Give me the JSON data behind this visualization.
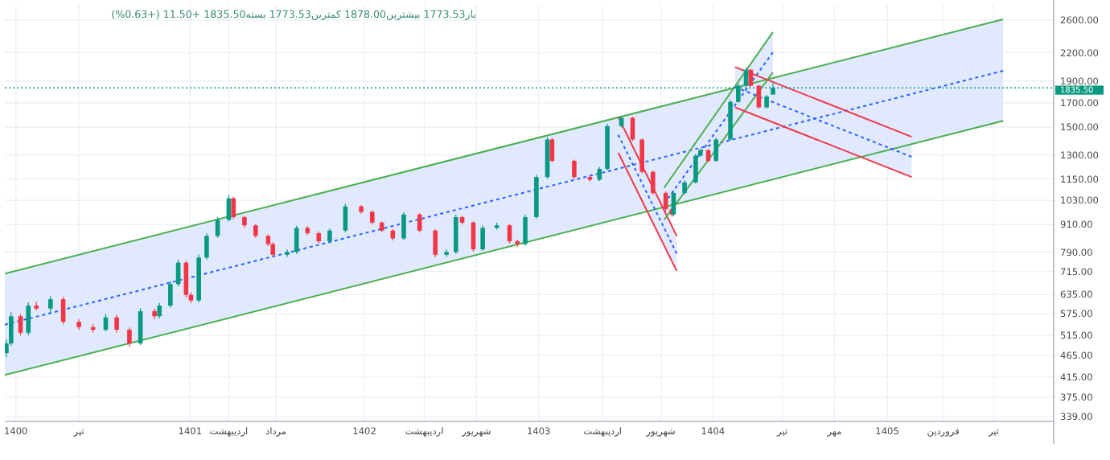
{
  "chart_data": {
    "type": "candlestick",
    "title": "باز1773.53 بیشترین1878.00 کمترین1773.53 بسته1835.50 +11.50 (+0.63%)",
    "x": [
      1399.946,
      1399.973,
      1400.027,
      1400.072,
      1400.118,
      1400.199,
      1400.272,
      1400.362,
      1400.443,
      1400.516,
      1400.579,
      1400.652,
      1400.715,
      1400.796,
      1400.824,
      1400.887,
      1400.932,
      1400.977,
      1401.005,
      1401.05,
      1401.095,
      1401.158,
      1401.222,
      1401.249,
      1401.312,
      1401.376,
      1401.448,
      1401.475,
      1401.557,
      1401.611,
      1401.674,
      1401.738,
      1401.801,
      1401.891,
      1401.982,
      1402.045,
      1402.1,
      1402.163,
      1402.226,
      1402.317,
      1402.407,
      1402.471,
      1402.525,
      1402.561,
      1402.625,
      1402.679,
      1402.76,
      1402.833,
      1402.878,
      1402.923,
      1402.987,
      1403.05,
      1403.077,
      1403.204,
      1403.294,
      1403.349,
      1403.394,
      1403.475,
      1403.539,
      1403.593,
      1403.656,
      1403.729,
      1403.765,
      1403.774,
      1403.837,
      1403.901,
      1403.928,
      1403.973,
      1404.018,
      1404.1,
      1404.145,
      1404.19,
      1404.217,
      1404.263,
      1404.308,
      1404.344
    ],
    "ohlc": [
      [
        470,
        505,
        460,
        494
      ],
      [
        494,
        580,
        488,
        568
      ],
      [
        568,
        575,
        515,
        522
      ],
      [
        522,
        610,
        515,
        600
      ],
      [
        600,
        612,
        585,
        591
      ],
      [
        591,
        630,
        580,
        620
      ],
      [
        620,
        628,
        545,
        552
      ],
      [
        552,
        560,
        530,
        537
      ],
      [
        537,
        545,
        522,
        530
      ],
      [
        530,
        575,
        525,
        565
      ],
      [
        565,
        572,
        522,
        530
      ],
      [
        530,
        536,
        486,
        494
      ],
      [
        494,
        592,
        490,
        583
      ],
      [
        583,
        590,
        560,
        568
      ],
      [
        568,
        608,
        562,
        600
      ],
      [
        600,
        680,
        594,
        670
      ],
      [
        670,
        760,
        662,
        748
      ],
      [
        748,
        755,
        625,
        634
      ],
      [
        634,
        642,
        608,
        616
      ],
      [
        616,
        780,
        610,
        768
      ],
      [
        768,
        870,
        760,
        858
      ],
      [
        858,
        945,
        850,
        932
      ],
      [
        932,
        1060,
        925,
        1041
      ],
      [
        1041,
        1050,
        935,
        945
      ],
      [
        945,
        952,
        895,
        906
      ],
      [
        906,
        912,
        850,
        858
      ],
      [
        858,
        865,
        815,
        823
      ],
      [
        823,
        830,
        770,
        779
      ],
      [
        779,
        800,
        770,
        790
      ],
      [
        790,
        905,
        782,
        894
      ],
      [
        894,
        902,
        862,
        870
      ],
      [
        870,
        878,
        826,
        835
      ],
      [
        835,
        892,
        828,
        882
      ],
      [
        882,
        1012,
        875,
        998
      ],
      [
        998,
        1005,
        962,
        971
      ],
      [
        971,
        978,
        910,
        919
      ],
      [
        919,
        925,
        875,
        882
      ],
      [
        882,
        888,
        838,
        847
      ],
      [
        847,
        970,
        840,
        958
      ],
      [
        958,
        965,
        875,
        882
      ],
      [
        882,
        888,
        770,
        779
      ],
      [
        779,
        800,
        770,
        790
      ],
      [
        790,
        958,
        782,
        945
      ],
      [
        945,
        952,
        910,
        919
      ],
      [
        919,
        925,
        792,
        801
      ],
      [
        801,
        905,
        795,
        894
      ],
      [
        894,
        918,
        886,
        906
      ],
      [
        906,
        912,
        826,
        835
      ],
      [
        835,
        842,
        812,
        823
      ],
      [
        823,
        958,
        815,
        945
      ],
      [
        945,
        1175,
        938,
        1161
      ],
      [
        1161,
        1425,
        1150,
        1408
      ],
      [
        1408,
        1420,
        1250,
        1262
      ],
      [
        1262,
        1270,
        1150,
        1161
      ],
      [
        1161,
        1170,
        1135,
        1145
      ],
      [
        1145,
        1222,
        1138,
        1211
      ],
      [
        1211,
        1525,
        1200,
        1509
      ],
      [
        1509,
        1590,
        1498,
        1574
      ],
      [
        1574,
        1582,
        1398,
        1408
      ],
      [
        1408,
        1415,
        1182,
        1193
      ],
      [
        1193,
        1200,
        1060,
        1070
      ],
      [
        1070,
        1078,
        975,
        985
      ],
      [
        985,
        992,
        948,
        958
      ],
      [
        958,
        1080,
        950,
        1070
      ],
      [
        1070,
        1142,
        1062,
        1130
      ],
      [
        1130,
        1310,
        1122,
        1296
      ],
      [
        1296,
        1345,
        1288,
        1333
      ],
      [
        1333,
        1340,
        1252,
        1262
      ],
      [
        1262,
        1422,
        1255,
        1408
      ],
      [
        1408,
        1725,
        1400,
        1708
      ],
      [
        1708,
        1875,
        1700,
        1856
      ],
      [
        1856,
        2035,
        1845,
        2015
      ],
      [
        2015,
        2022,
        1845,
        1856
      ],
      [
        1856,
        1865,
        1650,
        1661
      ],
      [
        1661,
        1770,
        1652,
        1756
      ],
      [
        1773.53,
        1878,
        1773.53,
        1835.5
      ]
    ],
    "series": [
      {
        "type": "line",
        "x": [
          1399.937,
          1405.665
        ],
        "values": [
          544,
          2004
        ],
        "lower": [
          420,
          1550
        ],
        "upper": [
          707,
          2610
        ],
        "color": "#2962ff",
        "line_style": "dashed"
      },
      {
        "type": "line",
        "x": [
          1399.937,
          1405.665
        ],
        "values": [
          707,
          2610
        ],
        "color": "#4caf50"
      },
      {
        "type": "line",
        "x": [
          1399.937,
          1405.665
        ],
        "values": [
          420,
          1550
        ],
        "color": "#4caf50"
      },
      {
        "type": "line",
        "x": [
          1403.457,
          1403.792
        ],
        "values": [
          1441,
          784
        ],
        "lower": [
          1315,
          717
        ],
        "upper": [
          1580,
          858
        ],
        "color": "#2962ff",
        "line_style": "dashed"
      },
      {
        "type": "line",
        "x": [
          1403.457,
          1403.792
        ],
        "values": [
          1580,
          858
        ],
        "color": "#f23645"
      },
      {
        "type": "line",
        "x": [
          1403.457,
          1403.792
        ],
        "values": [
          1315,
          717
        ],
        "color": "#f23645"
      },
      {
        "type": "line",
        "x": [
          1403.72,
          1404.344
        ],
        "values": [
          1012,
          2204
        ],
        "lower": [
          932,
          1987
        ],
        "upper": [
          1099,
          2445
        ],
        "color": "#2962ff",
        "line_style": "dashed"
      },
      {
        "type": "line",
        "x": [
          1403.72,
          1404.344
        ],
        "values": [
          1099,
          2445
        ],
        "color": "#4caf50"
      },
      {
        "type": "line",
        "x": [
          1403.72,
          1404.344
        ],
        "values": [
          932,
          1987
        ],
        "color": "#4caf50"
      },
      {
        "type": "line",
        "x": [
          1404.127,
          1405.14
        ],
        "values": [
          1842,
          1288
        ],
        "lower": [
          1661,
          1161
        ],
        "upper": [
          2043,
          1428
        ],
        "color": "#2962ff",
        "line_style": "dashed"
      },
      {
        "type": "line",
        "x": [
          1404.127,
          1405.14
        ],
        "values": [
          2043,
          1428
        ],
        "color": "#f23645"
      },
      {
        "type": "line",
        "x": [
          1404.127,
          1405.14
        ],
        "values": [
          1661,
          1161
        ],
        "color": "#f23645"
      }
    ],
    "ref_lines": [
      {
        "axis": "y",
        "value": 1835.5,
        "label": "1835.50",
        "color": "#089981",
        "line_style": "dotted"
      }
    ],
    "log": "y",
    "grid": true,
    "xlim": [
      1399.937,
      1405.955
    ],
    "xticks": [
      1400,
      {
        "value": 1400.362,
        "label": "تیر"
      },
      1401,
      {
        "value": 1401.222,
        "label": "اردیبهشت"
      },
      {
        "value": 1401.493,
        "label": "مرداد"
      },
      1402,
      {
        "value": 1402.344,
        "label": "اردیبهشت"
      },
      {
        "value": 1402.643,
        "label": "شهریور"
      },
      1403,
      {
        "value": 1403.367,
        "label": "اردیبهشت"
      },
      {
        "value": 1403.701,
        "label": "شهریور"
      },
      1404,
      {
        "value": 1404.398,
        "label": "تیر"
      },
      {
        "value": 1404.697,
        "label": "مهر"
      },
      1405,
      {
        "value": 1405.321,
        "label": "فروردین"
      },
      {
        "value": 1405.611,
        "label": "تیر"
      }
    ],
    "ylim": [
      331,
      2812
    ],
    "yticks": [
      {
        "value": 339,
        "label": "339.00"
      },
      {
        "value": 375,
        "label": "375.00"
      },
      {
        "value": 415,
        "label": "415.00"
      },
      {
        "value": 465,
        "label": "465.00"
      },
      {
        "value": 515,
        "label": "515.00"
      },
      {
        "value": 575,
        "label": "575.00"
      },
      {
        "value": 635,
        "label": "635.00"
      },
      {
        "value": 715,
        "label": "715.00"
      },
      {
        "value": 790,
        "label": "790.00"
      },
      {
        "value": 910,
        "label": "910.00"
      },
      {
        "value": 1030,
        "label": "1030.00"
      },
      {
        "value": 1150,
        "label": "1150.00"
      },
      {
        "value": 1300,
        "label": "1300.00"
      },
      {
        "value": 1500,
        "label": "1500.00"
      },
      {
        "value": 1700,
        "label": "1700.00"
      },
      {
        "value": 1900,
        "label": "1900.00"
      },
      {
        "value": 2200,
        "label": "2200.00"
      },
      {
        "value": 2600,
        "label": "2600.00"
      }
    ]
  }
}
